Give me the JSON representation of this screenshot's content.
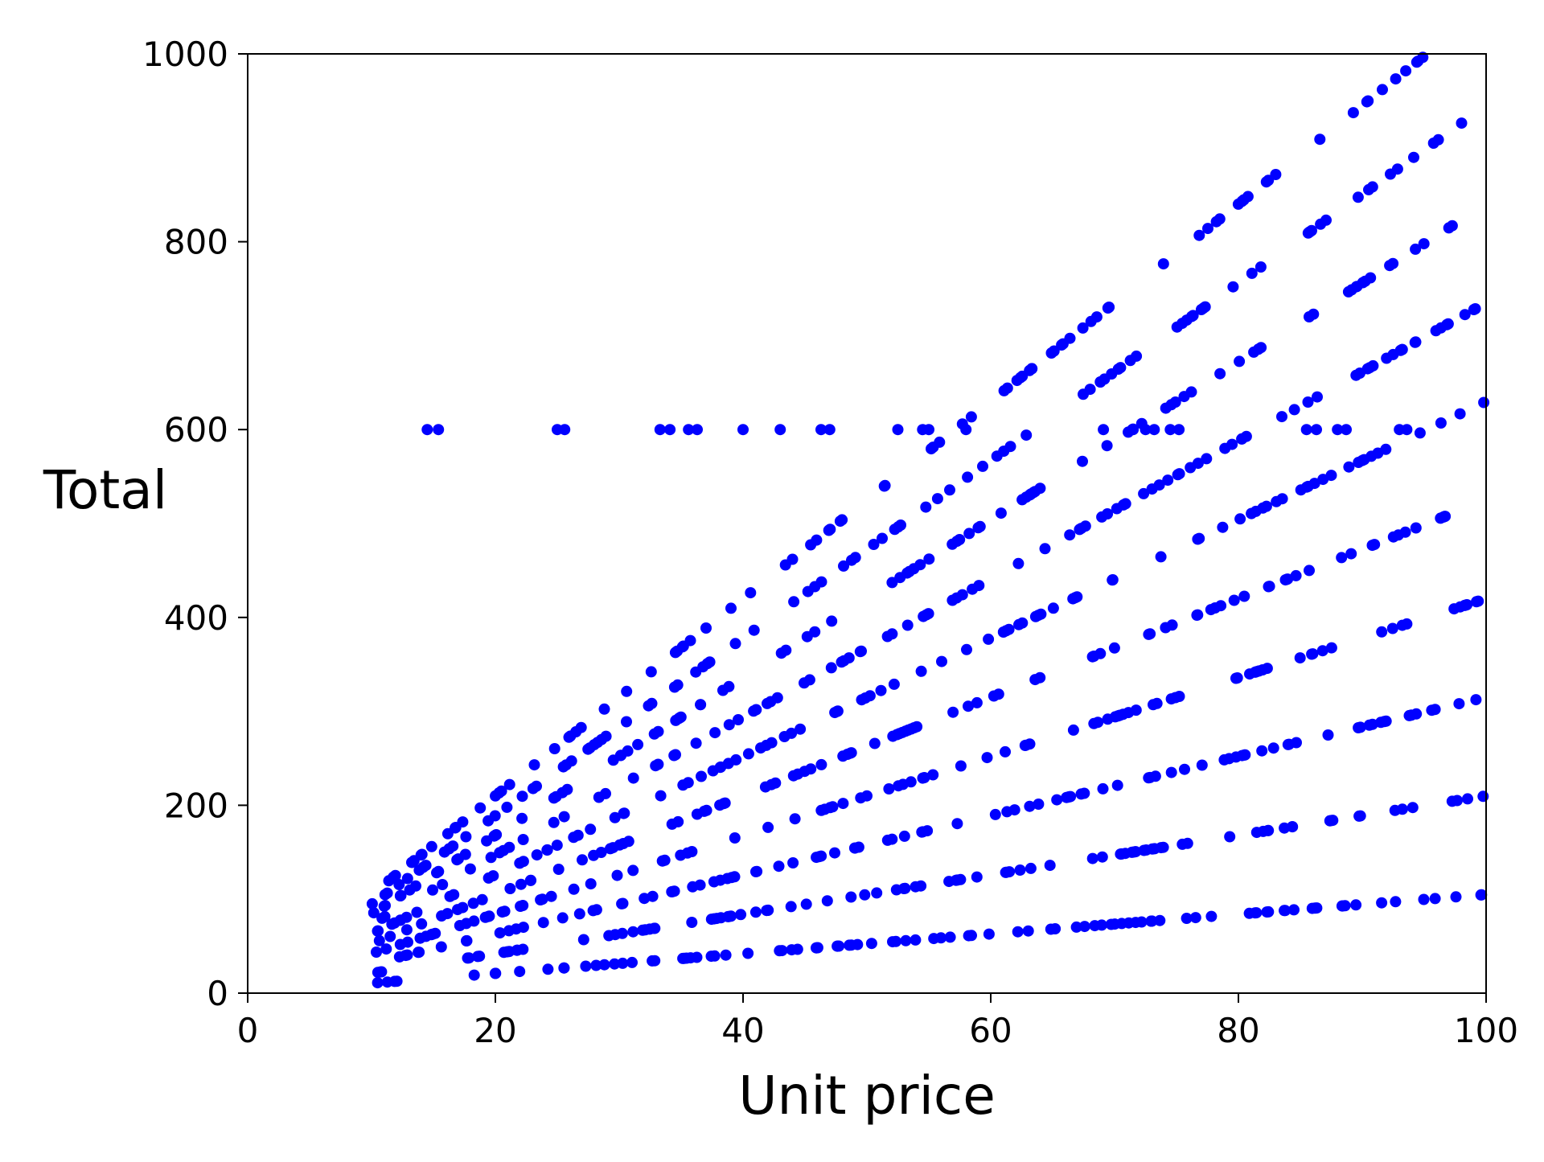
{
  "chart_data": {
    "type": "scatter",
    "title": "",
    "xlabel": "Unit price",
    "ylabel": "Total",
    "xlim": [
      0,
      100
    ],
    "ylim": [
      0,
      1000
    ],
    "xticks": [
      0,
      20,
      40,
      60,
      80,
      100
    ],
    "yticks": [
      0,
      200,
      400,
      600,
      800,
      1000
    ],
    "grid": false,
    "legend": "none",
    "marker_color": "#0000ff",
    "quantity_levels": [
      1,
      2,
      3,
      4,
      5,
      6,
      7,
      8,
      9,
      10
    ],
    "unit_price_range": [
      10,
      100
    ],
    "saturation_total": 600,
    "saturation_points": [
      [
        14.5,
        600
      ],
      [
        15.4,
        600
      ],
      [
        25.0,
        600
      ],
      [
        25.6,
        600
      ],
      [
        33.3,
        600
      ],
      [
        34.1,
        600
      ],
      [
        35.6,
        600
      ],
      [
        36.3,
        600
      ],
      [
        40.0,
        600
      ],
      [
        43.0,
        600
      ],
      [
        46.3,
        600
      ],
      [
        47.0,
        600
      ],
      [
        52.5,
        600
      ],
      [
        54.5,
        600
      ],
      [
        55.0,
        600
      ],
      [
        58.0,
        600
      ],
      [
        69.1,
        600
      ],
      [
        71.5,
        600
      ],
      [
        72.5,
        600
      ],
      [
        73.2,
        600
      ],
      [
        74.5,
        600
      ],
      [
        75.2,
        600
      ],
      [
        85.5,
        600
      ],
      [
        86.3,
        600
      ],
      [
        88.0,
        600
      ],
      [
        88.7,
        600
      ],
      [
        93.0,
        600
      ],
      [
        93.6,
        600
      ]
    ]
  }
}
